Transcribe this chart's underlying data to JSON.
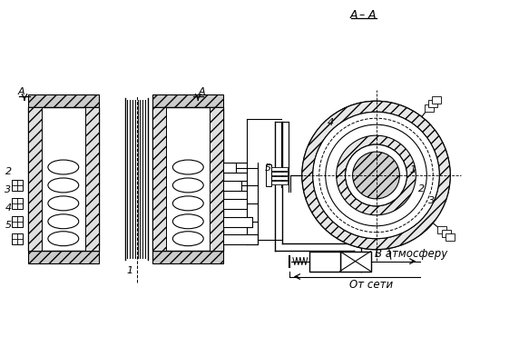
{
  "bg_color": "#ffffff",
  "labels": {
    "A": "A",
    "v_atm": "В атмосферу",
    "ot_seti": "От сети",
    "n1": "1",
    "n2": "2",
    "n3": "3",
    "n4": "4",
    "n5": "5",
    "n6": "6",
    "aa": "A–A"
  },
  "figsize": [
    5.72,
    3.71
  ],
  "dpi": 100
}
